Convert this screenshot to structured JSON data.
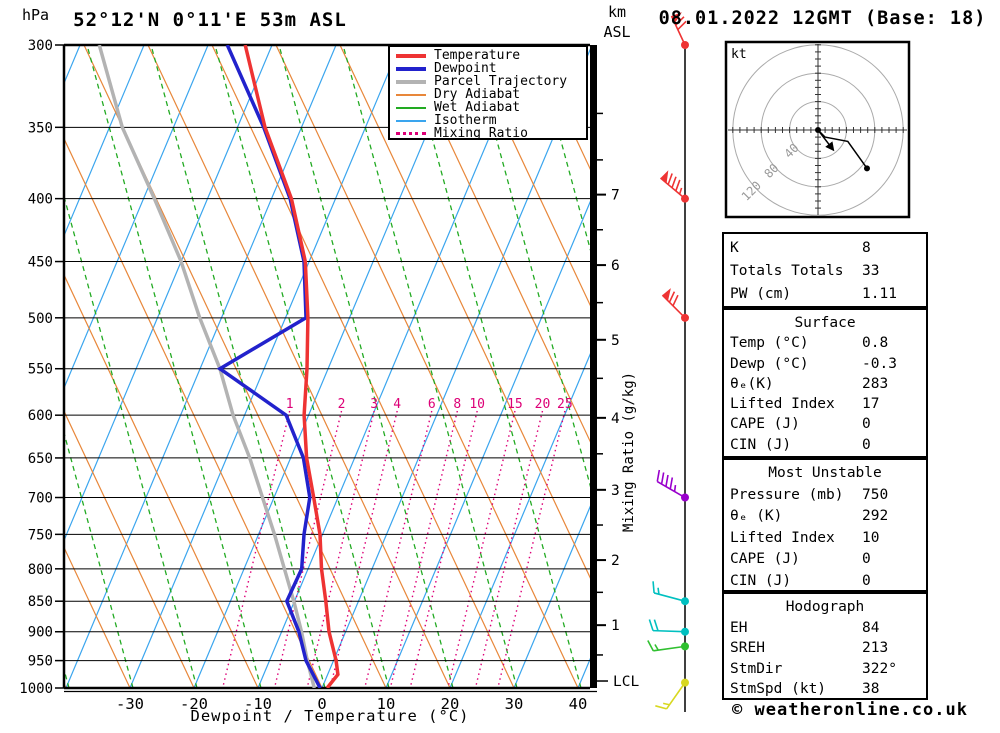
{
  "header": {
    "station_title": "52°12'N 0°11'E 53m ASL",
    "datetime_title": "08.01.2022 12GMT (Base: 18)"
  },
  "axes": {
    "pressure_unit": "hPa",
    "km_unit": "km",
    "asl_label": "ASL",
    "x_title": "Dewpoint / Temperature (°C)",
    "mixing_label": "Mixing Ratio (g/kg)",
    "lcl_label": "LCL",
    "temp_ticks": [
      -30,
      -20,
      -10,
      0,
      10,
      20,
      30,
      40
    ]
  },
  "legend": {
    "items": [
      {
        "label": "Temperature",
        "color": "#ee3333",
        "thick": 4,
        "dash": "solid"
      },
      {
        "label": "Dewpoint",
        "color": "#2222cc",
        "thick": 4,
        "dash": "solid"
      },
      {
        "label": "Parcel Trajectory",
        "color": "#b3b3b3",
        "thick": 4,
        "dash": "solid"
      },
      {
        "label": "Dry Adiabat",
        "color": "#e8873a",
        "thick": 2,
        "dash": "solid"
      },
      {
        "label": "Wet Adiabat",
        "color": "#22aa22",
        "thick": 2,
        "dash": "solid"
      },
      {
        "label": "Isotherm",
        "color": "#3aa5ee",
        "thick": 2,
        "dash": "solid"
      },
      {
        "label": "Mixing Ratio",
        "color": "#dd0077",
        "thick": 3,
        "dash": "dotted"
      }
    ]
  },
  "chart_data": {
    "type": "skewt-sounding",
    "pressure_levels": [
      300,
      350,
      400,
      450,
      500,
      550,
      600,
      650,
      700,
      750,
      800,
      850,
      900,
      950,
      1000
    ],
    "temp_axis_range": [
      -40,
      40
    ],
    "colors": {
      "temperature": "#ee3333",
      "dewpoint": "#2222cc",
      "parcel": "#b3b3b3",
      "dry_adiabat": "#e8873a",
      "wet_adiabat": "#22aa22",
      "isotherm": "#3aa5ee",
      "mixing": "#dd0077"
    },
    "temperature": [
      [
        300,
        -54.2
      ],
      [
        350,
        -45.7
      ],
      [
        400,
        -36.9
      ],
      [
        450,
        -30.6
      ],
      [
        500,
        -26.5
      ],
      [
        550,
        -23.3
      ],
      [
        600,
        -20.7
      ],
      [
        650,
        -17.5
      ],
      [
        700,
        -13.8
      ],
      [
        750,
        -10.4
      ],
      [
        800,
        -7.9
      ],
      [
        850,
        -5.1
      ],
      [
        900,
        -2.6
      ],
      [
        950,
        0.4
      ],
      [
        975,
        1.6
      ],
      [
        1000,
        0.8
      ]
    ],
    "dewpoint": [
      [
        300,
        -57.0
      ],
      [
        350,
        -45.9
      ],
      [
        400,
        -37.1
      ],
      [
        450,
        -30.8
      ],
      [
        500,
        -26.8
      ],
      [
        550,
        -36.9
      ],
      [
        600,
        -23.5
      ],
      [
        650,
        -18.0
      ],
      [
        700,
        -14.4
      ],
      [
        750,
        -12.9
      ],
      [
        800,
        -11.0
      ],
      [
        850,
        -11.2
      ],
      [
        900,
        -7.3
      ],
      [
        950,
        -4.3
      ],
      [
        1000,
        -0.3
      ]
    ],
    "parcel": [
      [
        300,
        -77.0
      ],
      [
        350,
        -68.0
      ],
      [
        400,
        -58.3
      ],
      [
        450,
        -50.0
      ],
      [
        500,
        -43.4
      ],
      [
        550,
        -36.9
      ],
      [
        600,
        -31.8
      ],
      [
        650,
        -26.4
      ],
      [
        700,
        -21.8
      ],
      [
        750,
        -17.5
      ],
      [
        800,
        -13.7
      ],
      [
        850,
        -10.1
      ],
      [
        900,
        -6.9
      ],
      [
        950,
        -4.1
      ],
      [
        1000,
        -1.2
      ]
    ],
    "mixing_ratio_lines": [
      {
        "value": "1",
        "t600": -23.1
      },
      {
        "value": "2",
        "t600": -15.0
      },
      {
        "value": "3",
        "t600": -9.9
      },
      {
        "value": "4",
        "t600": -6.3
      },
      {
        "value": "6",
        "t600": -0.9
      },
      {
        "value": "8",
        "t600": 3.1
      },
      {
        "value": "10",
        "t600": 6.2
      },
      {
        "value": "15",
        "t600": 12.1
      },
      {
        "value": "20",
        "t600": 16.4
      },
      {
        "value": "25",
        "t600": 19.9
      }
    ],
    "km_ticks": [
      {
        "km": "7",
        "p": 397
      },
      {
        "km": "6",
        "p": 453
      },
      {
        "km": "5",
        "p": 521
      },
      {
        "km": "4",
        "p": 603
      },
      {
        "km": "3",
        "p": 690
      },
      {
        "km": "2",
        "p": 787
      },
      {
        "km": "1",
        "p": 889
      }
    ],
    "km_minor_ticks_p": [
      341,
      372,
      424,
      486,
      560,
      645,
      737,
      836,
      940
    ],
    "lcl_pressure": 987,
    "winds": [
      {
        "p": 300,
        "dir": 335,
        "speed_kt": 70,
        "color": "#ee3333"
      },
      {
        "p": 400,
        "dir": 310,
        "speed_kt": 85,
        "color": "#ee3333"
      },
      {
        "p": 500,
        "dir": 315,
        "speed_kt": 70,
        "color": "#ee3333"
      },
      {
        "p": 700,
        "dir": 300,
        "speed_kt": 45,
        "color": "#9900cc"
      },
      {
        "p": 850,
        "dir": 285,
        "speed_kt": 15,
        "color": "#00c0c0"
      },
      {
        "p": 900,
        "dir": 272,
        "speed_kt": 20,
        "color": "#00c0c0"
      },
      {
        "p": 925,
        "dir": 262,
        "speed_kt": 15,
        "color": "#30c030"
      },
      {
        "p": 990,
        "dir": 215,
        "speed_kt": 15,
        "color": "#d8d820"
      }
    ],
    "hodograph": {
      "unit_label": "kt",
      "ring_labels": [
        "40",
        "80",
        "120"
      ],
      "rings_kt": [
        40,
        80,
        120
      ],
      "trace_kt": [
        [
          0,
          0
        ],
        [
          10,
          10
        ],
        [
          42,
          16
        ],
        [
          69,
          54
        ]
      ],
      "storm_motion_kt": [
        23,
        30
      ]
    }
  },
  "tables": {
    "indices": {
      "rows": [
        {
          "label": "K",
          "value": "8"
        },
        {
          "label": "Totals Totals",
          "value": "33"
        },
        {
          "label": "PW (cm)",
          "value": "1.11"
        }
      ]
    },
    "surface": {
      "title": "Surface",
      "rows": [
        {
          "label": "Temp (°C)",
          "value": "0.8"
        },
        {
          "label": "Dewp (°C)",
          "value": "-0.3"
        },
        {
          "label": "θₑ(K)",
          "value": "283"
        },
        {
          "label": "Lifted Index",
          "value": "17"
        },
        {
          "label": "CAPE (J)",
          "value": "0"
        },
        {
          "label": "CIN (J)",
          "value": "0"
        }
      ]
    },
    "most_unstable": {
      "title": "Most Unstable",
      "rows": [
        {
          "label": "Pressure (mb)",
          "value": "750"
        },
        {
          "label": "θₑ (K)",
          "value": "292"
        },
        {
          "label": "Lifted Index",
          "value": "10"
        },
        {
          "label": "CAPE (J)",
          "value": "0"
        },
        {
          "label": "CIN (J)",
          "value": "0"
        }
      ]
    },
    "hodograph": {
      "title": "Hodograph",
      "rows": [
        {
          "label": "EH",
          "value": "84"
        },
        {
          "label": "SREH",
          "value": "213"
        },
        {
          "label": "StmDir",
          "value": "322°"
        },
        {
          "label": "StmSpd (kt)",
          "value": "38"
        }
      ]
    }
  },
  "footer": {
    "copyright": "© weatheronline.co.uk"
  }
}
